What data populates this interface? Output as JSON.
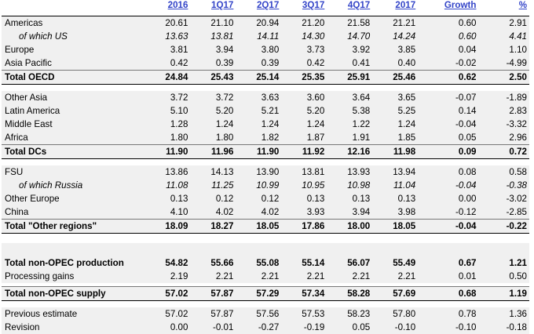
{
  "header": {
    "columns": [
      "2016",
      "1Q17",
      "2Q17",
      "3Q17",
      "4Q17",
      "2017",
      "Growth",
      "%"
    ]
  },
  "rows": [
    {
      "label": "Americas",
      "values": [
        "20.61",
        "21.10",
        "20.94",
        "21.20",
        "21.58",
        "21.21",
        "0.60",
        "2.91"
      ]
    },
    {
      "label": "of which US",
      "values": [
        "13.63",
        "13.81",
        "14.11",
        "14.30",
        "14.70",
        "14.24",
        "0.60",
        "4.41"
      ]
    },
    {
      "label": "Europe",
      "values": [
        "3.81",
        "3.94",
        "3.80",
        "3.73",
        "3.92",
        "3.85",
        "0.04",
        "1.10"
      ]
    },
    {
      "label": "Asia Pacific",
      "values": [
        "0.42",
        "0.39",
        "0.39",
        "0.42",
        "0.41",
        "0.40",
        "-0.02",
        "-4.99"
      ]
    },
    {
      "label": "Total OECD",
      "values": [
        "24.84",
        "25.43",
        "25.14",
        "25.35",
        "25.91",
        "25.46",
        "0.62",
        "2.50"
      ]
    },
    {
      "label": "Other Asia",
      "values": [
        "3.72",
        "3.72",
        "3.63",
        "3.60",
        "3.64",
        "3.65",
        "-0.07",
        "-1.89"
      ]
    },
    {
      "label": "Latin America",
      "values": [
        "5.10",
        "5.20",
        "5.21",
        "5.20",
        "5.38",
        "5.25",
        "0.14",
        "2.83"
      ]
    },
    {
      "label": "Middle East",
      "values": [
        "1.28",
        "1.24",
        "1.24",
        "1.24",
        "1.22",
        "1.24",
        "-0.04",
        "-3.32"
      ]
    },
    {
      "label": "Africa",
      "values": [
        "1.80",
        "1.80",
        "1.82",
        "1.87",
        "1.91",
        "1.85",
        "0.05",
        "2.96"
      ]
    },
    {
      "label": "Total DCs",
      "values": [
        "11.90",
        "11.96",
        "11.90",
        "11.92",
        "12.16",
        "11.98",
        "0.09",
        "0.72"
      ]
    },
    {
      "label": "FSU",
      "values": [
        "13.86",
        "14.13",
        "13.90",
        "13.81",
        "13.93",
        "13.94",
        "0.08",
        "0.58"
      ]
    },
    {
      "label": "of which Russia",
      "values": [
        "11.08",
        "11.25",
        "10.99",
        "10.95",
        "10.98",
        "11.04",
        "-0.04",
        "-0.38"
      ]
    },
    {
      "label": "Other Europe",
      "values": [
        "0.13",
        "0.12",
        "0.12",
        "0.13",
        "0.13",
        "0.13",
        "0.00",
        "-3.02"
      ]
    },
    {
      "label": "China",
      "values": [
        "4.10",
        "4.02",
        "4.02",
        "3.93",
        "3.94",
        "3.98",
        "-0.12",
        "-2.85"
      ]
    },
    {
      "label": "Total \"Other regions\"",
      "values": [
        "18.09",
        "18.27",
        "18.05",
        "17.86",
        "18.00",
        "18.05",
        "-0.04",
        "-0.22"
      ]
    },
    {
      "label": "Total non-OPEC production",
      "values": [
        "54.82",
        "55.66",
        "55.08",
        "55.14",
        "56.07",
        "55.49",
        "0.67",
        "1.21"
      ]
    },
    {
      "label": "Processing gains",
      "values": [
        "2.19",
        "2.21",
        "2.21",
        "2.21",
        "2.21",
        "2.21",
        "0.01",
        "0.50"
      ]
    },
    {
      "label": "Total non-OPEC supply",
      "values": [
        "57.02",
        "57.87",
        "57.29",
        "57.34",
        "58.28",
        "57.69",
        "0.68",
        "1.19"
      ]
    },
    {
      "label": "Previous estimate",
      "values": [
        "57.02",
        "57.87",
        "57.56",
        "57.53",
        "58.23",
        "57.80",
        "0.78",
        "1.36"
      ]
    },
    {
      "label": "Revision",
      "values": [
        "0.00",
        "-0.01",
        "-0.27",
        "-0.19",
        "0.05",
        "-0.10",
        "-0.10",
        "-0.18"
      ]
    }
  ]
}
